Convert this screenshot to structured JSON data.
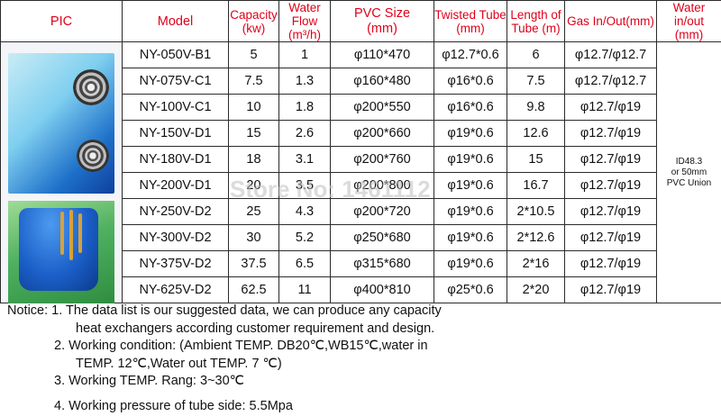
{
  "headers": {
    "pic": "PIC",
    "model": "Model",
    "capacity": [
      "Capacity",
      "(kw)"
    ],
    "water_flow": [
      "Water Flow",
      "(m³/h)"
    ],
    "pvc_size": [
      "PVC Size",
      "(mm)"
    ],
    "twisted_tube": [
      "Twisted Tube",
      "(mm)"
    ],
    "tube_length": [
      "Length of",
      "Tube (m)"
    ],
    "gas": "Gas In/Out(mm)",
    "water_io": [
      "Water in/out",
      "(mm)"
    ]
  },
  "rows": [
    {
      "model": "NY-050V-B1",
      "capacity": "5",
      "flow": "1",
      "pvc": "φ110*470",
      "tube": "φ12.7*0.6",
      "length": "6",
      "gas": "φ12.7/φ12.7"
    },
    {
      "model": "NY-075V-C1",
      "capacity": "7.5",
      "flow": "1.3",
      "pvc": "φ160*480",
      "tube": "φ16*0.6",
      "length": "7.5",
      "gas": "φ12.7/φ12.7"
    },
    {
      "model": "NY-100V-C1",
      "capacity": "10",
      "flow": "1.8",
      "pvc": "φ200*550",
      "tube": "φ16*0.6",
      "length": "9.8",
      "gas": "φ12.7/φ19"
    },
    {
      "model": "NY-150V-D1",
      "capacity": "15",
      "flow": "2.6",
      "pvc": "φ200*660",
      "tube": "φ19*0.6",
      "length": "12.6",
      "gas": "φ12.7/φ19"
    },
    {
      "model": "NY-180V-D1",
      "capacity": "18",
      "flow": "3.1",
      "pvc": "φ200*760",
      "tube": "φ19*0.6",
      "length": "15",
      "gas": "φ12.7/φ19"
    },
    {
      "model": "NY-200V-D1",
      "capacity": "20",
      "flow": "3.5",
      "pvc": "φ200*800",
      "tube": "φ19*0.6",
      "length": "16.7",
      "gas": "φ12.7/φ19"
    },
    {
      "model": "NY-250V-D2",
      "capacity": "25",
      "flow": "4.3",
      "pvc": "φ200*720",
      "tube": "φ19*0.6",
      "length": "2*10.5",
      "gas": "φ12.7/φ19"
    },
    {
      "model": "NY-300V-D2",
      "capacity": "30",
      "flow": "5.2",
      "pvc": "φ250*680",
      "tube": "φ19*0.6",
      "length": "2*12.6",
      "gas": "φ12.7/φ19"
    },
    {
      "model": "NY-375V-D2",
      "capacity": "37.5",
      "flow": "6.5",
      "pvc": "φ315*680",
      "tube": "φ19*0.6",
      "length": "2*16",
      "gas": "φ12.7/φ19"
    },
    {
      "model": "NY-625V-D2",
      "capacity": "62.5",
      "flow": "11",
      "pvc": "φ400*810",
      "tube": "φ25*0.6",
      "length": "2*20",
      "gas": "φ12.7/φ19"
    }
  ],
  "water_value": [
    "ID48.3",
    "or 50mm",
    "PVC Union"
  ],
  "watermark": "Store No: 1461112",
  "notice": [
    "Notice: 1. The data list is our suggested data, we can produce any capacity",
    "heat exchangers according customer requirement and design.",
    "2. Working condition: (Ambient TEMP. DB20℃,WB15℃,water in",
    "TEMP. 12℃,Water out TEMP. 7 ℃)",
    "3. Working TEMP. Rang: 3~30℃",
    "4. Working pressure of tube side: 5.5Mpa"
  ]
}
